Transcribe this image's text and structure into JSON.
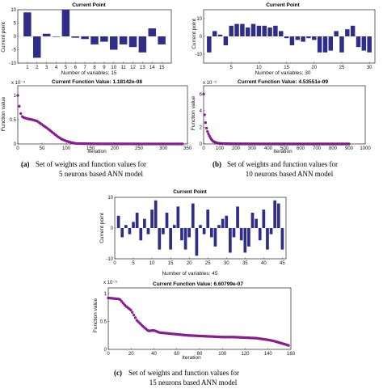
{
  "colors": {
    "bar": "#2e2e8a",
    "marker": "#9b1fa6",
    "markerEdge": "#5b0d63",
    "axis": "#222222"
  },
  "panels": [
    {
      "caption_id": "(a)",
      "caption_l1": "Set of weights and function values for",
      "caption_l2": "5 neurons based ANN model",
      "bar": {
        "title": "Current Point",
        "ylabel": "Current point",
        "xlabel": "Number of variables: 15",
        "xticks": [
          "1",
          "2",
          "3",
          "4",
          "5",
          "6",
          "7",
          "8",
          "9",
          "10",
          "11",
          "12",
          "13",
          "14",
          "15"
        ],
        "yticks": [
          "-10",
          "-5",
          "0",
          "5",
          "10"
        ]
      },
      "line": {
        "title": "Current Function Value: 1.18142e-08",
        "ylabel": "Function value",
        "xlabel": "Iteration",
        "exp": "x 10⁻⁴",
        "xticks": [
          "0",
          "50",
          "100",
          "150",
          "200",
          "250",
          "300",
          "350"
        ],
        "yticks": [
          "0",
          "0.5",
          "1"
        ]
      }
    },
    {
      "caption_id": "(b)",
      "caption_l1": "Set of weights and function values for",
      "caption_l2": "10 neurons based ANN model",
      "bar": {
        "title": "Current Point",
        "ylabel": "Current point",
        "xlabel": "Number of variables: 30",
        "xticks": [
          "5",
          "10",
          "15",
          "20",
          "25",
          "30"
        ],
        "yticks": [
          "-10",
          "0",
          "10"
        ]
      },
      "line": {
        "title": "Current Function Value: 4.53551e-09",
        "ylabel": "Function value",
        "xlabel": "Iteration",
        "exp": "x 10⁻⁵",
        "xticks": [
          "0",
          "100",
          "200",
          "300",
          "400",
          "500",
          "600",
          "700",
          "800",
          "900",
          "1000"
        ],
        "yticks": [
          "0",
          "2",
          "4",
          "6"
        ]
      }
    },
    {
      "caption_id": "(c)",
      "caption_l1": "Set of weights and function values for",
      "caption_l2": "15 neurons based ANN model",
      "bar": {
        "title": "Current Point",
        "ylabel": "Current point",
        "xlabel": "Number of variables: 45",
        "xticks": [
          "0",
          "5",
          "10",
          "15",
          "20",
          "25",
          "30",
          "35",
          "40",
          "45"
        ],
        "yticks": [
          "-10",
          "0",
          "10"
        ]
      },
      "line": {
        "title": "Current Function Value: 6.60799e-07",
        "ylabel": "Function value",
        "xlabel": "Iteration",
        "exp": "x 10⁻⁵",
        "xticks": [
          "0",
          "20",
          "40",
          "60",
          "80",
          "100",
          "120",
          "140",
          "160"
        ],
        "yticks": [
          "0",
          "0.5",
          "1"
        ]
      }
    }
  ],
  "chart_data": [
    {
      "type": "bar",
      "title": "Current Point",
      "xlabel": "Number of variables: 15",
      "ylabel": "Current point",
      "categories": [
        1,
        2,
        3,
        4,
        5,
        6,
        7,
        8,
        9,
        10,
        11,
        12,
        13,
        14,
        15
      ],
      "values": [
        9,
        -8,
        1,
        0,
        10,
        -0.5,
        -1,
        -3,
        -2,
        -5,
        -3,
        -4,
        -6,
        3,
        -3
      ],
      "ylim": [
        -10,
        10
      ],
      "xlim": [
        0,
        16
      ]
    },
    {
      "type": "line",
      "title": "Current Function Value: 1.18142e-08",
      "xlabel": "Iteration",
      "ylabel": "Function value",
      "y_scale": "x 10^-4",
      "series": [
        {
          "x": [
            0,
            2,
            5,
            10,
            20,
            30,
            40,
            50,
            60,
            70,
            80,
            90,
            100,
            110,
            120,
            140,
            160,
            200,
            250,
            300,
            340
          ],
          "y": [
            1.0,
            0.85,
            0.65,
            0.55,
            0.52,
            0.5,
            0.47,
            0.4,
            0.33,
            0.25,
            0.17,
            0.1,
            0.06,
            0.03,
            0.01,
            0.005,
            0.003,
            0.002,
            0.001,
            0.001,
            0.001
          ]
        }
      ],
      "xlim": [
        0,
        350
      ],
      "ylim": [
        0,
        1.2
      ]
    },
    {
      "type": "bar",
      "title": "Current Point",
      "xlabel": "Number of variables: 30",
      "ylabel": "Current point",
      "categories": [
        1,
        2,
        3,
        4,
        5,
        6,
        7,
        8,
        9,
        10,
        11,
        12,
        13,
        14,
        15,
        16,
        17,
        18,
        19,
        20,
        21,
        22,
        23,
        24,
        25,
        26,
        27,
        28,
        29,
        30
      ],
      "values": [
        -9,
        3,
        1,
        -5,
        6,
        7,
        7,
        5,
        7,
        6,
        6,
        5,
        6,
        3,
        -1,
        -5,
        -2,
        -3,
        -1,
        -2,
        -9,
        -9,
        -8,
        3,
        -9,
        4,
        6,
        -6,
        -8,
        -9
      ],
      "ylim": [
        -15,
        15
      ],
      "xlim": [
        0,
        31
      ]
    },
    {
      "type": "line",
      "title": "Current Function Value: 4.53551e-09",
      "xlabel": "Iteration",
      "ylabel": "Function value",
      "y_scale": "x 10^-5",
      "series": [
        {
          "x": [
            0,
            3,
            6,
            10,
            15,
            20,
            30,
            40,
            50,
            60,
            80,
            100,
            150,
            200,
            300,
            400,
            500,
            600,
            700,
            800,
            900
          ],
          "y": [
            6.0,
            4.5,
            3.5,
            2.8,
            2.2,
            1.7,
            1.2,
            0.8,
            0.5,
            0.3,
            0.12,
            0.06,
            0.02,
            0.01,
            0.005,
            0.003,
            0.002,
            0.001,
            0.001,
            0.001,
            0.001
          ]
        }
      ],
      "xlim": [
        0,
        1000
      ],
      "ylim": [
        0,
        7
      ]
    },
    {
      "type": "bar",
      "title": "Current Point",
      "xlabel": "Number of variables: 45",
      "ylabel": "Current point",
      "categories": [
        1,
        2,
        3,
        4,
        5,
        6,
        7,
        8,
        9,
        10,
        11,
        12,
        13,
        14,
        15,
        16,
        17,
        18,
        19,
        20,
        21,
        22,
        23,
        24,
        25,
        26,
        27,
        28,
        29,
        30,
        31,
        32,
        33,
        34,
        35,
        36,
        37,
        38,
        39,
        40,
        41,
        42,
        43,
        44,
        45
      ],
      "values": [
        4,
        -3,
        1,
        -2,
        2,
        5,
        -4,
        3,
        -2,
        6,
        9,
        -7,
        -2,
        5,
        -7,
        1,
        7,
        -4,
        -7,
        -3,
        8,
        -9,
        1,
        -2,
        6,
        -3,
        -6,
        1,
        3,
        4,
        -8,
        -3,
        7,
        -4,
        -8,
        -6,
        5,
        3,
        -4,
        6,
        -7,
        -2,
        9,
        8,
        -7
      ],
      "ylim": [
        -10,
        10
      ],
      "xlim": [
        0,
        46
      ]
    },
    {
      "type": "line",
      "title": "Current Function Value: 6.60799e-07",
      "xlabel": "Iteration",
      "ylabel": "Function value",
      "y_scale": "x 10^-5",
      "series": [
        {
          "x": [
            0,
            5,
            10,
            15,
            20,
            25,
            30,
            35,
            40,
            45,
            50,
            55,
            60,
            65,
            70,
            80,
            90,
            100,
            110,
            120,
            130,
            140,
            145,
            150,
            155,
            158
          ],
          "y": [
            0.92,
            0.91,
            0.9,
            0.78,
            0.7,
            0.52,
            0.42,
            0.33,
            0.34,
            0.3,
            0.29,
            0.28,
            0.27,
            0.26,
            0.25,
            0.24,
            0.23,
            0.22,
            0.22,
            0.21,
            0.2,
            0.17,
            0.15,
            0.12,
            0.09,
            0.07
          ]
        }
      ],
      "xlim": [
        0,
        160
      ],
      "ylim": [
        0,
        1.1
      ]
    }
  ]
}
